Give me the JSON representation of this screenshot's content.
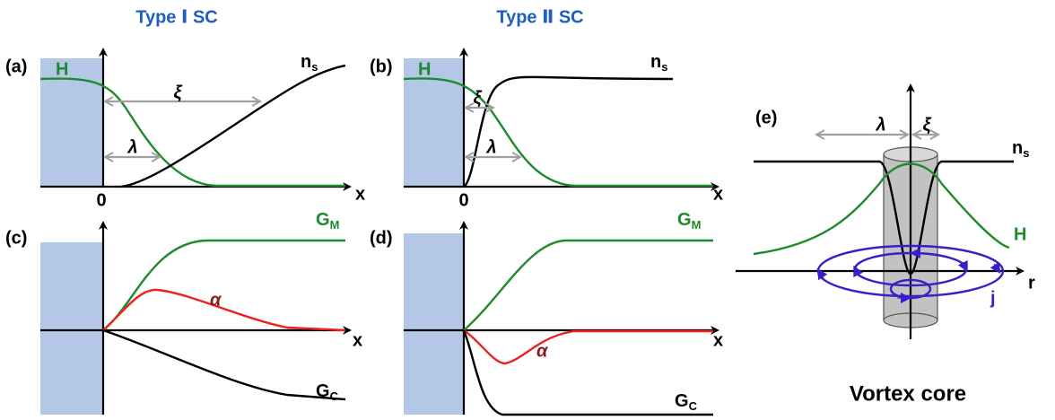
{
  "column_titles": [
    "Type Ⅰ SC",
    "Type Ⅱ SC"
  ],
  "panels": [
    {
      "label": "(a)",
      "field": "H",
      "density": {
        "base": "n",
        "sub": "s"
      },
      "coherence": "ξ",
      "penetration": "λ",
      "origin": "0",
      "axis": "x"
    },
    {
      "label": "(b)",
      "field": "H",
      "density": {
        "base": "n",
        "sub": "s"
      },
      "coherence": "ξ",
      "penetration": "λ",
      "origin": "0",
      "axis": "x"
    },
    {
      "label": "(c)",
      "magnetic": {
        "base": "G",
        "sub": "M"
      },
      "order": "α",
      "condensation": {
        "base": "G",
        "sub": "C"
      },
      "axis": "x"
    },
    {
      "label": "(d)",
      "magnetic": {
        "base": "G",
        "sub": "M"
      },
      "order": "α",
      "condensation": {
        "base": "G",
        "sub": "C"
      },
      "axis": "x"
    },
    {
      "label": "(e)",
      "penetration": "λ",
      "coherence": "ξ",
      "density": {
        "base": "n",
        "sub": "s"
      },
      "field": "H",
      "axis": "r",
      "current": "j",
      "caption": "Vortex core"
    }
  ]
}
